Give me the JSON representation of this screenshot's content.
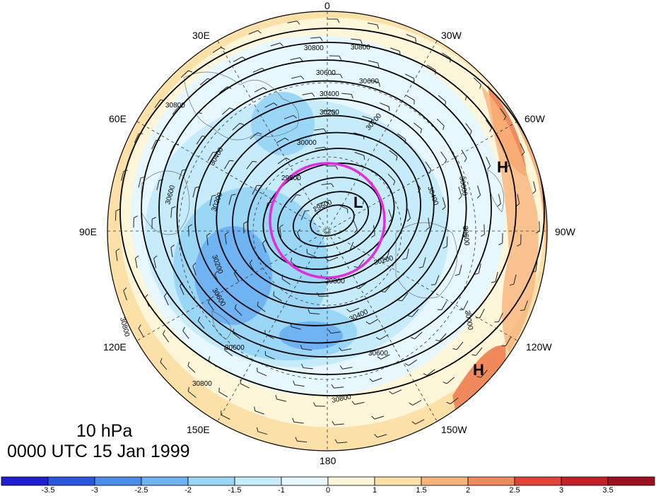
{
  "map": {
    "projection": "north-polar-stereographic",
    "longitude_labels": {
      "top": "0",
      "top_left": "30E",
      "top_right": "30W",
      "upper_left": "60E",
      "upper_right": "60W",
      "left": "90E",
      "right": "90W",
      "lower_left": "120E",
      "lower_right": "120W",
      "bottom_left": "150E",
      "bottom_right": "150W",
      "bottom": "180"
    },
    "contour_labels": [
      "30800",
      "30800",
      "30600",
      "30600",
      "30400",
      "30200",
      "30800",
      "30400",
      "30200",
      "30000",
      "29800",
      "29600",
      "30600",
      "30400",
      "30200",
      "30600",
      "30600",
      "30200",
      "30600",
      "30400",
      "30600",
      "30800",
      "30800",
      "30600",
      "30800",
      "30200",
      "29800",
      "30000"
    ],
    "centers": {
      "high_1": "H",
      "high_2": "H",
      "low": "L"
    },
    "highlight_circle_color": "#e52be0"
  },
  "caption": {
    "level": "10 hPa",
    "time": "0000 UTC 15 Jan 1999"
  },
  "colorbar": {
    "ticks": [
      "-3.5",
      "-3",
      "-2.5",
      "-2",
      "-1.5",
      "-1",
      "0",
      "1",
      "1.5",
      "2",
      "2.5",
      "3",
      "3.5"
    ],
    "colors": [
      "#1e1ed2",
      "#2a56e0",
      "#4a8eec",
      "#6fb3f3",
      "#9ad7f7",
      "#c6ecfb",
      "#e6f7fd",
      "#fdf6d8",
      "#fbe0a8",
      "#f7b47a",
      "#f08a5c",
      "#e2443a",
      "#c4202a",
      "#9e1020"
    ]
  }
}
